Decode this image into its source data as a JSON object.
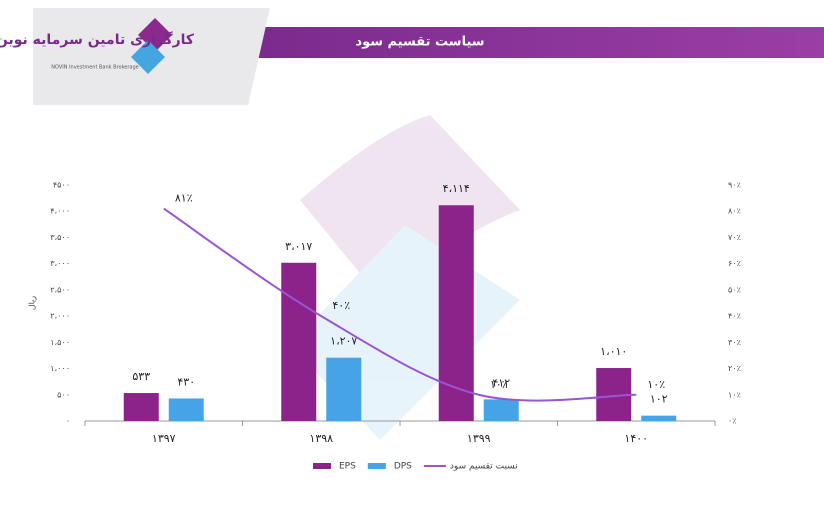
{
  "header": {
    "logo_name": "کارگزاری تامین سرمایه نوین",
    "logo_english": "NOVIN Investment Bank Brokerage"
  },
  "chart_data": {
    "type": "bar",
    "title": "سیاست تقسیم سود",
    "y_label": "ریال",
    "categories": [
      "۱۳۹۷",
      "۱۳۹۸",
      "۱۳۹۹",
      "۱۴۰۰"
    ],
    "series": [
      {
        "name": "EPS",
        "color": "#8b238b",
        "values": [
          533,
          3017,
          4114,
          1010
        ],
        "value_labels": [
          "۵۳۳",
          "۳،۰۱۷",
          "۴،۱۱۴",
          "۱،۰۱۰"
        ]
      },
      {
        "name": "DPS",
        "color": "#46a3e6",
        "values": [
          430,
          1207,
          412,
          102
        ],
        "value_labels": [
          "۴۳۰",
          "۱،۲۰۷",
          "۴۱۲",
          "۱۰۲"
        ]
      },
      {
        "name": "نسبت تقسیم سود",
        "type": "line",
        "axis": "y2",
        "color": "#9b55d2",
        "values": [
          81,
          40,
          10,
          10
        ],
        "value_labels": [
          "۸۱٪",
          "۴۰٪",
          "۱۰٪",
          "۱۰٪"
        ]
      }
    ],
    "ylim": [
      0,
      4500
    ],
    "yticks": [
      {
        "value": 0,
        "label": "۰"
      },
      {
        "value": 500,
        "label": "۵۰۰"
      },
      {
        "value": 1000,
        "label": "۱،۰۰۰"
      },
      {
        "value": 1500,
        "label": "۱،۵۰۰"
      },
      {
        "value": 2000,
        "label": "۲،۰۰۰"
      },
      {
        "value": 2500,
        "label": "۲،۵۰۰"
      },
      {
        "value": 3000,
        "label": "۳،۰۰۰"
      },
      {
        "value": 3500,
        "label": "۳،۵۰۰"
      },
      {
        "value": 4000,
        "label": "۴،۰۰۰"
      },
      {
        "value": 4500,
        "label": "۴۵۰۰"
      }
    ],
    "y2lim": [
      0,
      90
    ],
    "y2ticks": [
      {
        "value": 0,
        "label": "۰٪"
      },
      {
        "value": 10,
        "label": "۱۰٪"
      },
      {
        "value": 20,
        "label": "۲۰٪"
      },
      {
        "value": 30,
        "label": "۳۰٪"
      },
      {
        "value": 40,
        "label": "۴۰٪"
      },
      {
        "value": 50,
        "label": "۵۰٪"
      },
      {
        "value": 60,
        "label": "۶۰٪"
      },
      {
        "value": 70,
        "label": "۷۰٪"
      },
      {
        "value": 80,
        "label": "۸۰٪"
      },
      {
        "value": 90,
        "label": "۹۰٪"
      }
    ],
    "legend": "bottom",
    "grid": false
  }
}
